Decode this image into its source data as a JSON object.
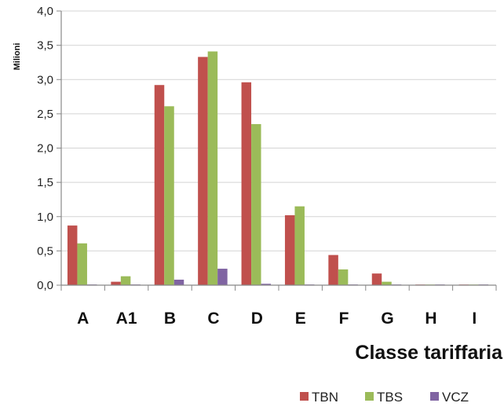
{
  "chart_data": {
    "type": "bar",
    "title": "",
    "xlabel": "Classe tariffaria",
    "ylabel": "Milioni",
    "ylim": [
      0,
      4
    ],
    "yticks": [
      "0,0",
      "0,5",
      "1,0",
      "1,5",
      "2,0",
      "2,5",
      "3,0",
      "3,5",
      "4,0"
    ],
    "categories": [
      "A",
      "A1",
      "B",
      "C",
      "D",
      "E",
      "F",
      "G",
      "H",
      "I"
    ],
    "series": [
      {
        "name": "TBN",
        "color": "#c0504d",
        "values": [
          0.87,
          0.05,
          2.92,
          3.33,
          2.96,
          1.02,
          0.44,
          0.17,
          0.0,
          0.0
        ]
      },
      {
        "name": "TBS",
        "color": "#9bbb59",
        "values": [
          0.61,
          0.13,
          2.61,
          3.41,
          2.35,
          1.15,
          0.23,
          0.05,
          0.0,
          0.0
        ]
      },
      {
        "name": "VCZ",
        "color": "#8064a2",
        "values": [
          0.01,
          0.01,
          0.08,
          0.24,
          0.02,
          0.01,
          0.01,
          0.01,
          0.01,
          0.01
        ]
      }
    ],
    "grid": true,
    "legend": "bottom-right"
  }
}
